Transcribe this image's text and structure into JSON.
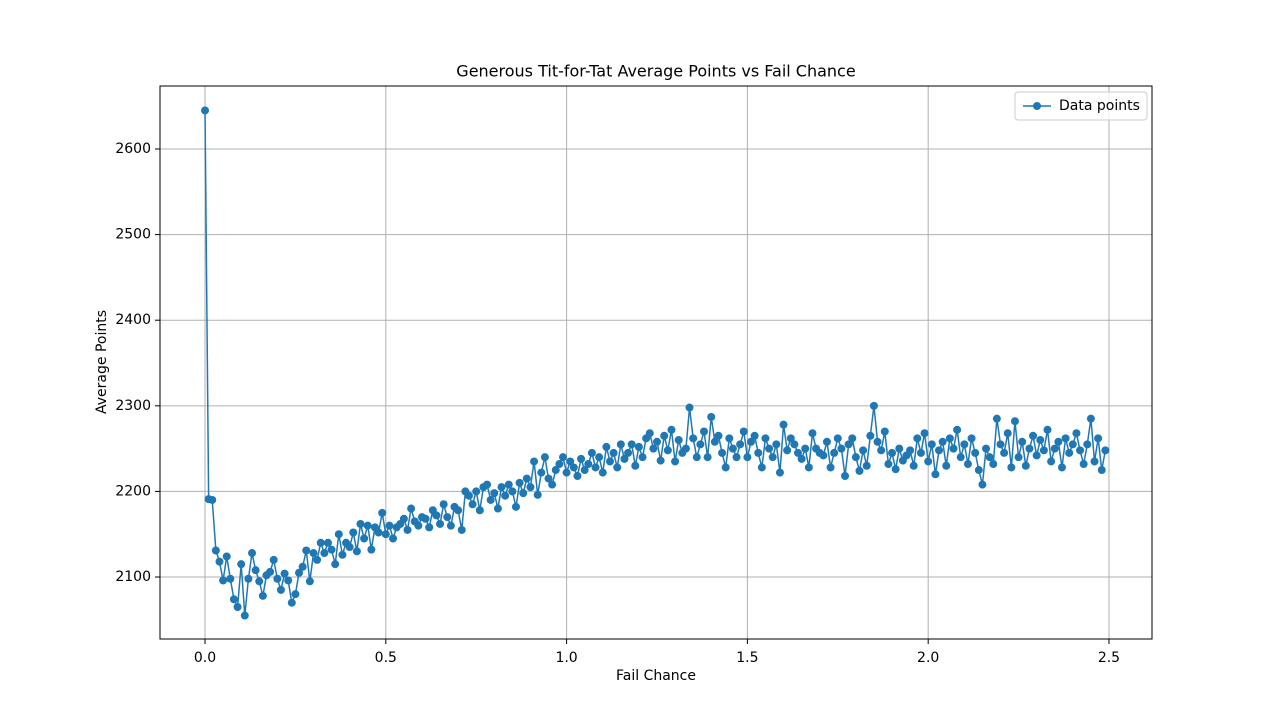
{
  "chart_data": {
    "type": "line",
    "title": "Generous Tit-for-Tat Average Points vs Fail Chance",
    "xlabel": "Fail Chance",
    "ylabel": "Average Points",
    "x": [
      0,
      0.01,
      0.02,
      0.03,
      0.04,
      0.05,
      0.06,
      0.07,
      0.08,
      0.09,
      0.1,
      0.11,
      0.12,
      0.13,
      0.14,
      0.15,
      0.16,
      0.17,
      0.18,
      0.19,
      0.2,
      0.21,
      0.22,
      0.23,
      0.24,
      0.25,
      0.26,
      0.27,
      0.28,
      0.29,
      0.3,
      0.31,
      0.32,
      0.33,
      0.34,
      0.35,
      0.36,
      0.37,
      0.38,
      0.39,
      0.4,
      0.41,
      0.42,
      0.43,
      0.44,
      0.45,
      0.46,
      0.47,
      0.48,
      0.49,
      0.5,
      0.51,
      0.52,
      0.53,
      0.54,
      0.55,
      0.56,
      0.57,
      0.58,
      0.59,
      0.6,
      0.61,
      0.62,
      0.63,
      0.64,
      0.65,
      0.66,
      0.67,
      0.68,
      0.69,
      0.7,
      0.71,
      0.72,
      0.73,
      0.74,
      0.75,
      0.76,
      0.77,
      0.78,
      0.79,
      0.8,
      0.81,
      0.82,
      0.83,
      0.84,
      0.85,
      0.86,
      0.87,
      0.88,
      0.89,
      0.9,
      0.91,
      0.92,
      0.93,
      0.94,
      0.95,
      0.96,
      0.97,
      0.98,
      0.99,
      1,
      1.01,
      1.02,
      1.03,
      1.04,
      1.05,
      1.06,
      1.07,
      1.08,
      1.09,
      1.1,
      1.11,
      1.12,
      1.13,
      1.14,
      1.15,
      1.16,
      1.17,
      1.18,
      1.19,
      1.2,
      1.21,
      1.22,
      1.23,
      1.24,
      1.25,
      1.26,
      1.27,
      1.28,
      1.29,
      1.3,
      1.31,
      1.32,
      1.33,
      1.34,
      1.35,
      1.36,
      1.37,
      1.38,
      1.39,
      1.4,
      1.41,
      1.42,
      1.43,
      1.44,
      1.45,
      1.46,
      1.47,
      1.48,
      1.49,
      1.5,
      1.51,
      1.52,
      1.53,
      1.54,
      1.55,
      1.56,
      1.57,
      1.58,
      1.59,
      1.6,
      1.61,
      1.62,
      1.63,
      1.64,
      1.65,
      1.66,
      1.67,
      1.68,
      1.69,
      1.7,
      1.71,
      1.72,
      1.73,
      1.74,
      1.75,
      1.76,
      1.77,
      1.78,
      1.79,
      1.8,
      1.81,
      1.82,
      1.83,
      1.84,
      1.85,
      1.86,
      1.87,
      1.88,
      1.89,
      1.9,
      1.91,
      1.92,
      1.93,
      1.94,
      1.95,
      1.96,
      1.97,
      1.98,
      1.99,
      2,
      2.01,
      2.02,
      2.03,
      2.04,
      2.05,
      2.06,
      2.07,
      2.08,
      2.09,
      2.1,
      2.11,
      2.12,
      2.13,
      2.14,
      2.15,
      2.16,
      2.17,
      2.18,
      2.19,
      2.2,
      2.21,
      2.22,
      2.23,
      2.24,
      2.25,
      2.26,
      2.27,
      2.28,
      2.29,
      2.3,
      2.31,
      2.32,
      2.33,
      2.34,
      2.35,
      2.36,
      2.37,
      2.38,
      2.39,
      2.4,
      2.41,
      2.42,
      2.43,
      2.44,
      2.45,
      2.46,
      2.47,
      2.48,
      2.49
    ],
    "series": [
      {
        "name": "Data points",
        "color": "#1f77b4",
        "values": [
          2645,
          2191,
          2190,
          2131,
          2118,
          2096,
          2124,
          2098,
          2074,
          2065,
          2115,
          2055,
          2098,
          2128,
          2108,
          2095,
          2078,
          2102,
          2106,
          2120,
          2098,
          2085,
          2104,
          2096,
          2070,
          2080,
          2105,
          2112,
          2131,
          2095,
          2128,
          2120,
          2140,
          2128,
          2140,
          2132,
          2115,
          2150,
          2126,
          2140,
          2135,
          2152,
          2130,
          2162,
          2145,
          2160,
          2132,
          2158,
          2152,
          2175,
          2150,
          2160,
          2145,
          2158,
          2162,
          2168,
          2155,
          2180,
          2165,
          2160,
          2170,
          2168,
          2158,
          2178,
          2172,
          2162,
          2185,
          2170,
          2160,
          2182,
          2178,
          2155,
          2200,
          2195,
          2185,
          2200,
          2178,
          2205,
          2208,
          2190,
          2198,
          2180,
          2205,
          2195,
          2208,
          2200,
          2182,
          2210,
          2198,
          2215,
          2205,
          2235,
          2196,
          2222,
          2240,
          2215,
          2208,
          2225,
          2232,
          2240,
          2222,
          2235,
          2228,
          2218,
          2238,
          2225,
          2232,
          2245,
          2228,
          2240,
          2222,
          2252,
          2235,
          2245,
          2228,
          2255,
          2238,
          2245,
          2255,
          2230,
          2252,
          2240,
          2262,
          2268,
          2250,
          2258,
          2236,
          2265,
          2248,
          2272,
          2235,
          2260,
          2245,
          2250,
          2298,
          2262,
          2240,
          2255,
          2270,
          2240,
          2287,
          2258,
          2265,
          2245,
          2228,
          2262,
          2250,
          2240,
          2255,
          2270,
          2240,
          2258,
          2265,
          2245,
          2228,
          2262,
          2250,
          2240,
          2255,
          2222,
          2278,
          2248,
          2262,
          2255,
          2245,
          2238,
          2250,
          2228,
          2268,
          2250,
          2245,
          2242,
          2258,
          2228,
          2245,
          2262,
          2250,
          2218,
          2255,
          2262,
          2240,
          2224,
          2248,
          2230,
          2265,
          2300,
          2258,
          2248,
          2270,
          2232,
          2245,
          2226,
          2250,
          2236,
          2242,
          2248,
          2230,
          2262,
          2245,
          2268,
          2235,
          2255,
          2220,
          2248,
          2258,
          2230,
          2262,
          2250,
          2272,
          2240,
          2255,
          2232,
          2262,
          2245,
          2225,
          2208,
          2250,
          2240,
          2232,
          2285,
          2255,
          2245,
          2268,
          2228,
          2282,
          2240,
          2258,
          2230,
          2250,
          2265,
          2242,
          2260,
          2248,
          2272,
          2235,
          2250,
          2258,
          2228,
          2262,
          2245,
          2255,
          2268,
          2248,
          2232,
          2255,
          2285,
          2235,
          2262,
          2225,
          2248
        ]
      }
    ],
    "xlim": [
      -0.1245,
      2.619
    ],
    "ylim": [
      2027.6,
      2673.6
    ],
    "xticks": [
      {
        "value": 0,
        "label": "0.0"
      },
      {
        "value": 0.5,
        "label": "0.5"
      },
      {
        "value": 1,
        "label": "1.0"
      },
      {
        "value": 1.5,
        "label": "1.5"
      },
      {
        "value": 2,
        "label": "2.0"
      },
      {
        "value": 2.5,
        "label": "2.5"
      }
    ],
    "yticks": [
      2100,
      2200,
      2300,
      2400,
      2500,
      2600
    ],
    "grid": true,
    "legend": "upper right",
    "marker": true
  }
}
